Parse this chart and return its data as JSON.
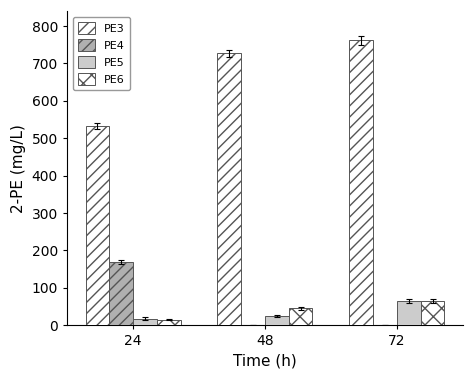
{
  "title": "",
  "xlabel": "Time (h)",
  "ylabel": "2-PE (mg/L)",
  "time_points": [
    24,
    48,
    72
  ],
  "series": {
    "PE3": {
      "values": [
        533,
        727,
        762
      ],
      "errors": [
        8,
        10,
        12
      ],
      "hatch": "///",
      "facecolor": "#ffffff",
      "edgecolor": "#555555"
    },
    "PE4": {
      "values": [
        170,
        0,
        0
      ],
      "errors": [
        5,
        0,
        0
      ],
      "hatch": "///",
      "facecolor": "#b0b0b0",
      "edgecolor": "#555555"
    },
    "PE5": {
      "values": [
        18,
        25,
        65
      ],
      "errors": [
        3,
        3,
        5
      ],
      "hatch": "",
      "facecolor": "#cccccc",
      "edgecolor": "#555555"
    },
    "PE6": {
      "values": [
        15,
        45,
        65
      ],
      "errors": [
        2,
        3,
        5
      ],
      "hatch": "xx",
      "facecolor": "#ffffff",
      "edgecolor": "#555555"
    }
  },
  "ylim": [
    0,
    840
  ],
  "yticks": [
    0,
    100,
    200,
    300,
    400,
    500,
    600,
    700,
    800
  ],
  "bar_width": 0.18,
  "legend_labels": [
    "PE3",
    "PE4",
    "PE5",
    "PE6"
  ],
  "legend_configs": [
    {
      "label": "PE3",
      "hatch": "///",
      "facecolor": "#ffffff",
      "edgecolor": "#555555"
    },
    {
      "label": "PE4",
      "hatch": "///",
      "facecolor": "#b0b0b0",
      "edgecolor": "#555555"
    },
    {
      "label": "PE5",
      "hatch": "",
      "facecolor": "#cccccc",
      "edgecolor": "#555555"
    },
    {
      "label": "PE6",
      "hatch": "xx",
      "facecolor": "#ffffff",
      "edgecolor": "#555555"
    }
  ],
  "background_color": "#ffffff"
}
